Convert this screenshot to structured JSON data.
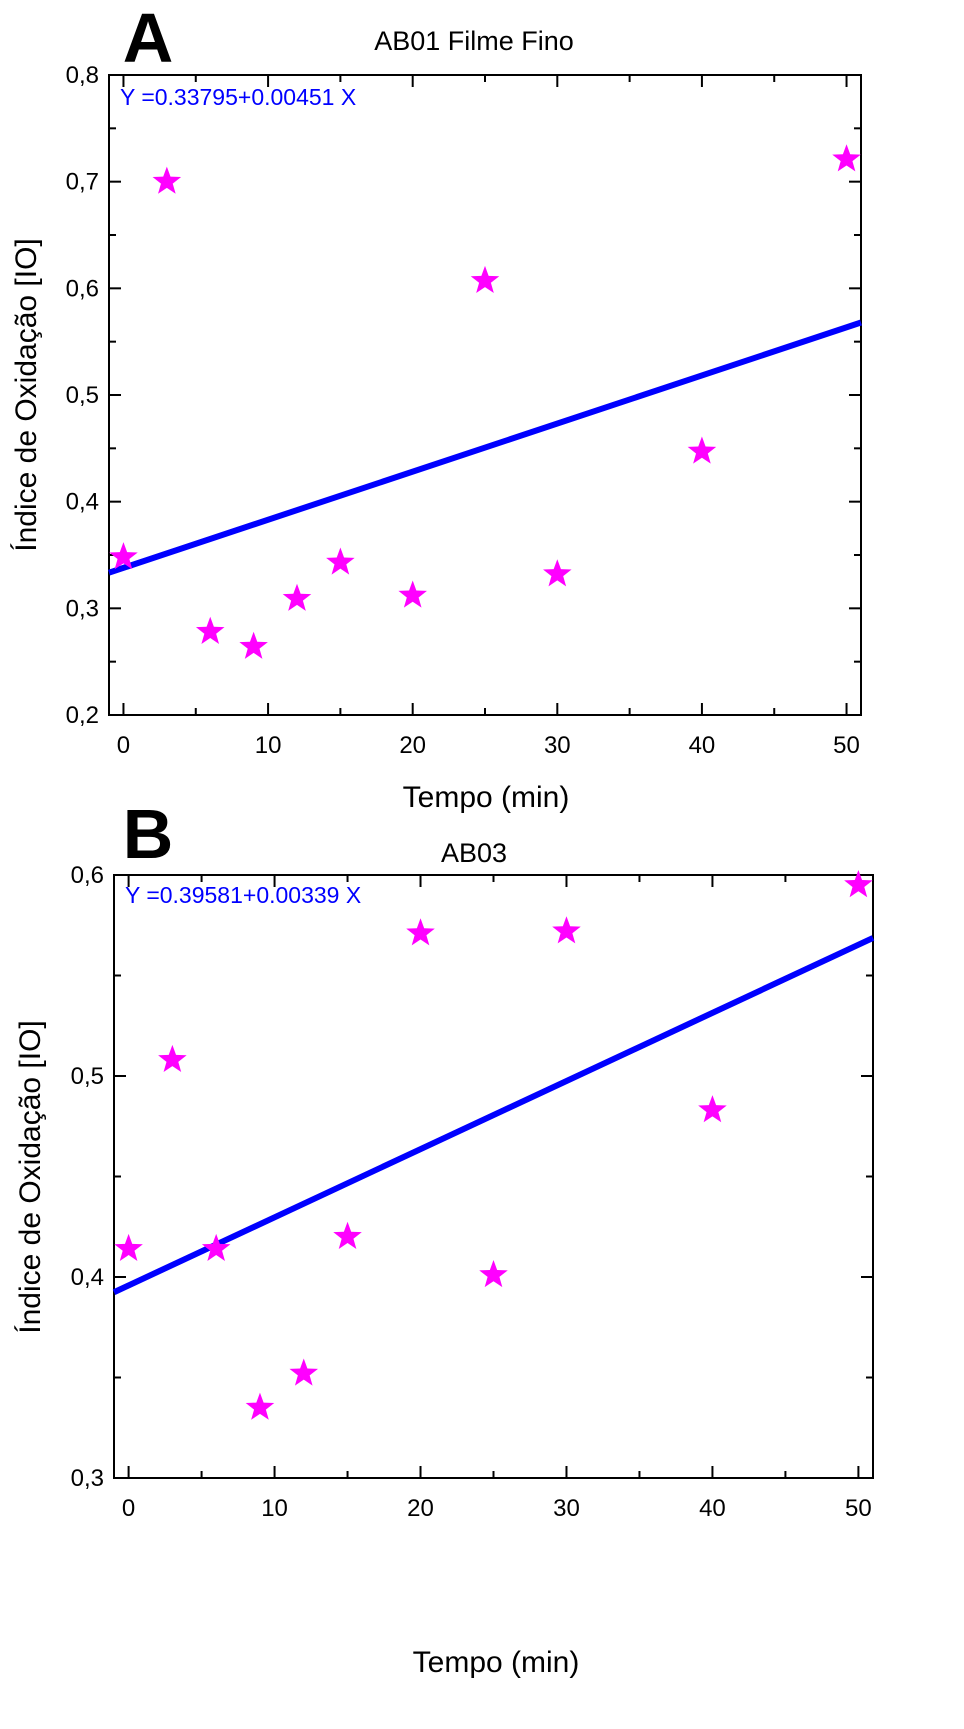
{
  "chart_data": [
    {
      "panel_label": "A",
      "type": "scatter",
      "title": "AB01 Filme Fino",
      "xlabel": "Tempo (min)",
      "ylabel": "Índice de Oxidação [IO]",
      "xlim": [
        -1,
        51
      ],
      "ylim": [
        0.2,
        0.8
      ],
      "xticks": [
        0,
        10,
        20,
        30,
        40,
        50
      ],
      "xtick_labels": [
        "0",
        "10",
        "20",
        "30",
        "40",
        "50"
      ],
      "yticks": [
        0.2,
        0.3,
        0.4,
        0.5,
        0.6,
        0.7,
        0.8
      ],
      "ytick_labels": [
        "0,2",
        "0,3",
        "0,4",
        "0,5",
        "0,6",
        "0,7",
        "0,8"
      ],
      "grid": false,
      "series": [
        {
          "marker": "star",
          "color": "#ff00ff",
          "x": [
            0,
            3,
            6,
            9,
            12,
            15,
            20,
            25,
            30,
            40,
            50
          ],
          "y": [
            0.348,
            0.7,
            0.278,
            0.264,
            0.309,
            0.343,
            0.312,
            0.607,
            0.332,
            0.447,
            0.721
          ]
        }
      ],
      "fit": {
        "intercept": 0.33795,
        "slope": 0.00451,
        "color": "#0000ff",
        "equation": "Y =0.33795+0.00451 X"
      }
    },
    {
      "panel_label": "B",
      "type": "scatter",
      "title": "AB03",
      "xlabel": "Tempo (min)",
      "ylabel": "Índice de Oxidação [IO]",
      "xlim": [
        -1,
        51
      ],
      "ylim": [
        0.3,
        0.6
      ],
      "xticks": [
        0,
        10,
        20,
        30,
        40,
        50
      ],
      "xtick_labels": [
        "0",
        "10",
        "20",
        "30",
        "40",
        "50"
      ],
      "yticks": [
        0.3,
        0.4,
        0.5,
        0.6
      ],
      "ytick_labels": [
        "0,3",
        "0,4",
        "0,5",
        "0,6"
      ],
      "grid": false,
      "series": [
        {
          "marker": "star",
          "color": "#ff00ff",
          "x": [
            0,
            3,
            6,
            9,
            12,
            15,
            20,
            25,
            30,
            40,
            50
          ],
          "y": [
            0.414,
            0.508,
            0.414,
            0.335,
            0.352,
            0.42,
            0.571,
            0.401,
            0.572,
            0.483,
            0.595
          ]
        }
      ],
      "fit": {
        "intercept": 0.39581,
        "slope": 0.00339,
        "color": "#0000ff",
        "equation": "Y =0.39581+0.00339 X"
      }
    }
  ]
}
